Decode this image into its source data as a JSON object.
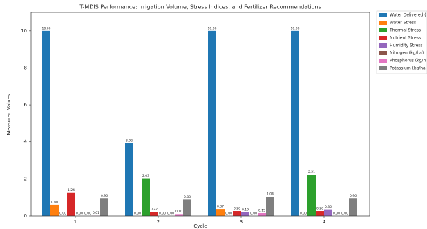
{
  "chart_data": {
    "type": "bar",
    "title": "T-MDIS Performance: Irrigation Volume, Stress Indices, and Fertilizer Recommendations",
    "xlabel": "Cycle",
    "ylabel": "Measured Values",
    "categories": [
      "1",
      "2",
      "3",
      "4"
    ],
    "series": [
      {
        "name": "Water Delivered (",
        "color": "#1f77b4",
        "values": [
          10,
          3.92,
          10,
          10
        ],
        "value_labels": [
          "10.00",
          "3.92",
          "10.00",
          "10.00"
        ]
      },
      {
        "name": "Water Stress",
        "color": "#ff7f0e",
        "values": [
          0.6,
          0,
          0.37,
          0
        ],
        "value_labels": [
          "0.60",
          "0.00",
          "0.37",
          "0.00"
        ]
      },
      {
        "name": "Thermal Stress",
        "color": "#2ca02c",
        "values": [
          0,
          2.03,
          0,
          2.21
        ],
        "value_labels": [
          "0.00",
          "2.03",
          "0.00",
          "2.21"
        ]
      },
      {
        "name": "Nutrient Stress",
        "color": "#d62728",
        "values": [
          1.24,
          0.22,
          0.26,
          0.26
        ],
        "value_labels": [
          "1.24",
          "0.22",
          "0.26",
          "0.26"
        ]
      },
      {
        "name": "Humidity Stress",
        "color": "#9467bd",
        "values": [
          0,
          0,
          0.19,
          0.35
        ],
        "value_labels": [
          "0.00",
          "0.00",
          "0.19",
          "0.35"
        ]
      },
      {
        "name": "Nitrogen (kg/ha)",
        "color": "#8c564b",
        "values": [
          0,
          0,
          0,
          0
        ],
        "value_labels": [
          "0.00",
          "0.00",
          "0.00",
          "0.00"
        ]
      },
      {
        "name": "Phosphorus (kg/h",
        "color": "#e377c2",
        "values": [
          0.01,
          0.1,
          0.15,
          0
        ],
        "value_labels": [
          "0.01",
          "0.10",
          "0.15",
          "0.00"
        ]
      },
      {
        "name": "Potassium (kg/ha",
        "color": "#7f7f7f",
        "values": [
          0.96,
          0.88,
          1.04,
          0.96
        ],
        "value_labels": [
          "0.96",
          "0.88",
          "1.04",
          "0.96"
        ]
      }
    ],
    "ylim": [
      0,
      11
    ],
    "yticks": [
      0,
      2,
      4,
      6,
      8,
      10
    ],
    "grid": false,
    "legend": "upper right outside"
  }
}
